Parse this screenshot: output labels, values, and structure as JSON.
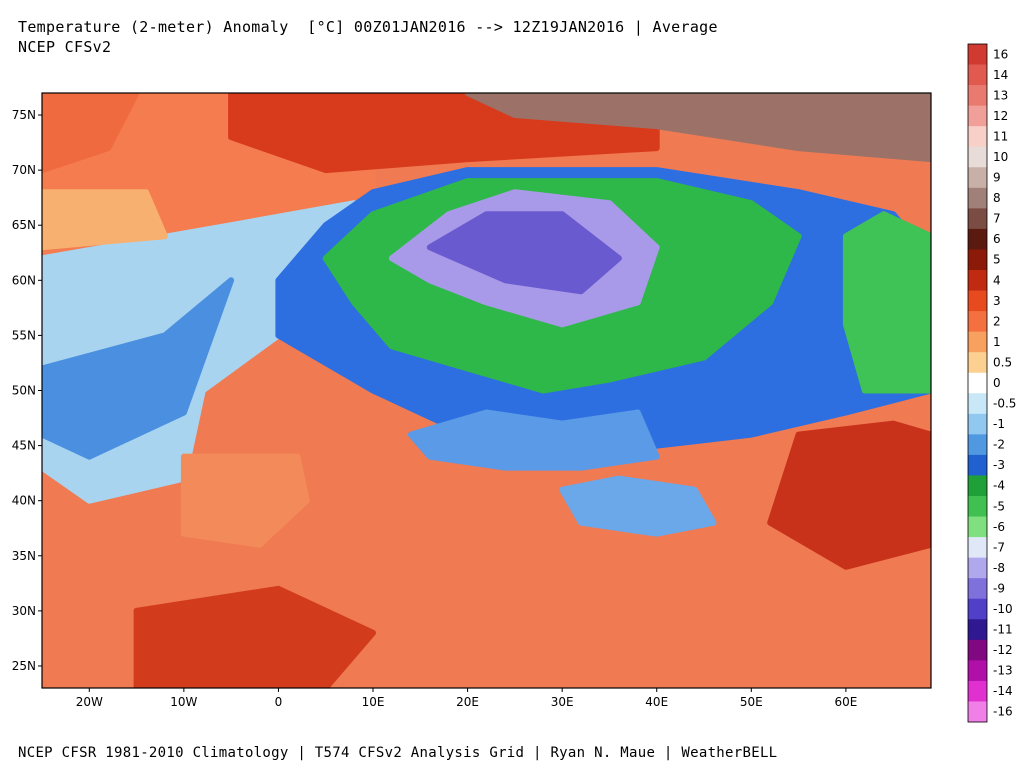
{
  "header": {
    "title": "Temperature (2-meter) Anomaly  [°C] 00Z01JAN2016 --> 12Z19JAN2016 | Average",
    "subtitle": "NCEP CFSv2"
  },
  "footer": {
    "text": "NCEP CFSR 1981-2010 Climatology | T574 CFSv2 Analysis Grid | Ryan N. Maue | WeatherBELL"
  },
  "map": {
    "lon_range": [
      -25,
      69
    ],
    "lat_range": [
      23,
      77
    ],
    "lon_ticks": [
      {
        "value": -20,
        "label": "20W"
      },
      {
        "value": -10,
        "label": "10W"
      },
      {
        "value": 0,
        "label": "0"
      },
      {
        "value": 10,
        "label": "10E"
      },
      {
        "value": 20,
        "label": "20E"
      },
      {
        "value": 30,
        "label": "30E"
      },
      {
        "value": 40,
        "label": "40E"
      },
      {
        "value": 50,
        "label": "50E"
      },
      {
        "value": 60,
        "label": "60E"
      }
    ],
    "lat_ticks": [
      {
        "value": 75,
        "label": "75N"
      },
      {
        "value": 70,
        "label": "70N"
      },
      {
        "value": 65,
        "label": "65N"
      },
      {
        "value": 60,
        "label": "60N"
      },
      {
        "value": 55,
        "label": "55N"
      },
      {
        "value": 50,
        "label": "50N"
      },
      {
        "value": 45,
        "label": "45N"
      },
      {
        "value": 40,
        "label": "40N"
      },
      {
        "value": 35,
        "label": "35N"
      },
      {
        "value": 30,
        "label": "30N"
      },
      {
        "value": 25,
        "label": "25N"
      }
    ],
    "background_color": "#f07a52",
    "anomaly_regions": [
      {
        "name": "ocean-warm-west",
        "value": 2,
        "color": "#f47c4e",
        "poly": [
          [
            -25,
            77
          ],
          [
            10,
            77
          ],
          [
            10,
            68
          ],
          [
            -5,
            62
          ],
          [
            -25,
            55
          ]
        ]
      },
      {
        "name": "arctic-warm",
        "value": 4,
        "color": "#d83a1c",
        "poly": [
          [
            -5,
            77
          ],
          [
            40,
            77
          ],
          [
            40,
            72
          ],
          [
            20,
            71
          ],
          [
            5,
            70
          ],
          [
            -5,
            73
          ]
        ]
      },
      {
        "name": "barents-very-warm",
        "value": 8,
        "color": "#9c7268",
        "poly": [
          [
            20,
            77
          ],
          [
            69,
            77
          ],
          [
            69,
            71
          ],
          [
            55,
            72
          ],
          [
            40,
            74
          ],
          [
            25,
            75
          ]
        ]
      },
      {
        "name": "north-atlantic-cool",
        "value": -1,
        "color": "#a8d4f0",
        "poly": [
          [
            -25,
            62
          ],
          [
            -5,
            65
          ],
          [
            8,
            67
          ],
          [
            10,
            60
          ],
          [
            0,
            55
          ],
          [
            -8,
            50
          ],
          [
            -10,
            42
          ],
          [
            -20,
            40
          ],
          [
            -25,
            43
          ]
        ]
      },
      {
        "name": "north-atlantic-blue",
        "value": -2,
        "color": "#4a8fe0",
        "poly": [
          [
            -25,
            52
          ],
          [
            -12,
            55
          ],
          [
            -5,
            60
          ],
          [
            -10,
            48
          ],
          [
            -20,
            44
          ],
          [
            -25,
            46
          ]
        ]
      },
      {
        "name": "scandinavia-blue",
        "value": -3,
        "color": "#2d6fe0",
        "poly": [
          [
            0,
            60
          ],
          [
            5,
            65
          ],
          [
            10,
            68
          ],
          [
            20,
            70
          ],
          [
            40,
            70
          ],
          [
            55,
            68
          ],
          [
            65,
            66
          ],
          [
            69,
            62
          ],
          [
            69,
            50
          ],
          [
            60,
            48
          ],
          [
            50,
            46
          ],
          [
            40,
            45
          ],
          [
            30,
            44
          ],
          [
            20,
            46
          ],
          [
            10,
            50
          ],
          [
            0,
            55
          ]
        ]
      },
      {
        "name": "russia-green",
        "value": -4,
        "color": "#2fb84a",
        "poly": [
          [
            5,
            62
          ],
          [
            10,
            66
          ],
          [
            20,
            69
          ],
          [
            40,
            69
          ],
          [
            50,
            67
          ],
          [
            55,
            64
          ],
          [
            52,
            58
          ],
          [
            45,
            53
          ],
          [
            35,
            51
          ],
          [
            28,
            50
          ],
          [
            20,
            52
          ],
          [
            12,
            54
          ],
          [
            8,
            58
          ]
        ]
      },
      {
        "name": "scandinavia-purple",
        "value": -8,
        "color": "#a89ae8",
        "poly": [
          [
            12,
            62
          ],
          [
            18,
            66
          ],
          [
            25,
            68
          ],
          [
            35,
            67
          ],
          [
            40,
            63
          ],
          [
            38,
            58
          ],
          [
            30,
            56
          ],
          [
            22,
            58
          ],
          [
            16,
            60
          ]
        ]
      },
      {
        "name": "scandinavia-deep-purple",
        "value": -10,
        "color": "#6a5ad0",
        "poly": [
          [
            16,
            63
          ],
          [
            22,
            66
          ],
          [
            30,
            66
          ],
          [
            36,
            62
          ],
          [
            32,
            59
          ],
          [
            24,
            60
          ]
        ]
      },
      {
        "name": "urals-green",
        "value": -4,
        "color": "#3fc256",
        "poly": [
          [
            60,
            64
          ],
          [
            64,
            66
          ],
          [
            69,
            64
          ],
          [
            69,
            50
          ],
          [
            62,
            50
          ],
          [
            60,
            56
          ]
        ]
      },
      {
        "name": "black-sea-blue",
        "value": -2,
        "color": "#5b9ae6",
        "poly": [
          [
            14,
            46
          ],
          [
            22,
            48
          ],
          [
            30,
            47
          ],
          [
            38,
            48
          ],
          [
            40,
            44
          ],
          [
            32,
            43
          ],
          [
            24,
            43
          ],
          [
            16,
            44
          ]
        ]
      },
      {
        "name": "turkey-blue",
        "value": -2,
        "color": "#6aa8ea",
        "poly": [
          [
            30,
            41
          ],
          [
            36,
            42
          ],
          [
            44,
            41
          ],
          [
            46,
            38
          ],
          [
            40,
            37
          ],
          [
            32,
            38
          ]
        ]
      },
      {
        "name": "caspian-warm",
        "value": 4,
        "color": "#c8321a",
        "poly": [
          [
            55,
            46
          ],
          [
            65,
            47
          ],
          [
            69,
            46
          ],
          [
            69,
            36
          ],
          [
            60,
            34
          ],
          [
            52,
            38
          ]
        ]
      },
      {
        "name": "sahara-hot",
        "value": 4,
        "color": "#d23c1c",
        "poly": [
          [
            -15,
            30
          ],
          [
            0,
            32
          ],
          [
            10,
            28
          ],
          [
            5,
            23
          ],
          [
            -15,
            23
          ]
        ]
      },
      {
        "name": "iberia-warm",
        "value": 2,
        "color": "#f28a5a",
        "poly": [
          [
            -10,
            44
          ],
          [
            2,
            44
          ],
          [
            3,
            40
          ],
          [
            -2,
            36
          ],
          [
            -10,
            37
          ]
        ]
      },
      {
        "name": "iceland-warm",
        "value": 1,
        "color": "#f8b070",
        "poly": [
          [
            -25,
            68
          ],
          [
            -14,
            68
          ],
          [
            -12,
            64
          ],
          [
            -25,
            63
          ]
        ]
      },
      {
        "name": "greenland-coast-warm",
        "value": 2,
        "color": "#f06a40",
        "poly": [
          [
            -25,
            77
          ],
          [
            -15,
            77
          ],
          [
            -18,
            72
          ],
          [
            -25,
            70
          ]
        ]
      }
    ]
  },
  "colorbar": {
    "levels": [
      {
        "label": "16",
        "color": "#d03a30"
      },
      {
        "label": "14",
        "color": "#e05a50"
      },
      {
        "label": "13",
        "color": "#e87a70"
      },
      {
        "label": "12",
        "color": "#f0a098"
      },
      {
        "label": "11",
        "color": "#f8d0c8"
      },
      {
        "label": "10",
        "color": "#e8dcd8"
      },
      {
        "label": "9",
        "color": "#c8b0a8"
      },
      {
        "label": "8",
        "color": "#a08078"
      },
      {
        "label": "7",
        "color": "#7a4c44"
      },
      {
        "label": "6",
        "color": "#5a1a10"
      },
      {
        "label": "5",
        "color": "#8c1a08"
      },
      {
        "label": "4",
        "color": "#c02a10"
      },
      {
        "label": "3",
        "color": "#e84a20"
      },
      {
        "label": "2",
        "color": "#f47040"
      },
      {
        "label": "1",
        "color": "#f8a060"
      },
      {
        "label": "0.5",
        "color": "#fcd090"
      },
      {
        "label": "0",
        "color": "#ffffff"
      },
      {
        "label": "-0.5",
        "color": "#c8e8f8"
      },
      {
        "label": "-1",
        "color": "#90c8f0"
      },
      {
        "label": "-2",
        "color": "#5098e0"
      },
      {
        "label": "-3",
        "color": "#2060d0"
      },
      {
        "label": "-4",
        "color": "#20a038"
      },
      {
        "label": "-5",
        "color": "#40c050"
      },
      {
        "label": "-6",
        "color": "#80e080"
      },
      {
        "label": "-7",
        "color": "#e0e8f8"
      },
      {
        "label": "-8",
        "color": "#b0a8ec"
      },
      {
        "label": "-9",
        "color": "#8070dc"
      },
      {
        "label": "-10",
        "color": "#5040c8"
      },
      {
        "label": "-11",
        "color": "#301890"
      },
      {
        "label": "-12",
        "color": "#800880"
      },
      {
        "label": "-13",
        "color": "#b010a8"
      },
      {
        "label": "-14",
        "color": "#e030d0"
      },
      {
        "label": "-16",
        "color": "#f080e8"
      }
    ]
  }
}
